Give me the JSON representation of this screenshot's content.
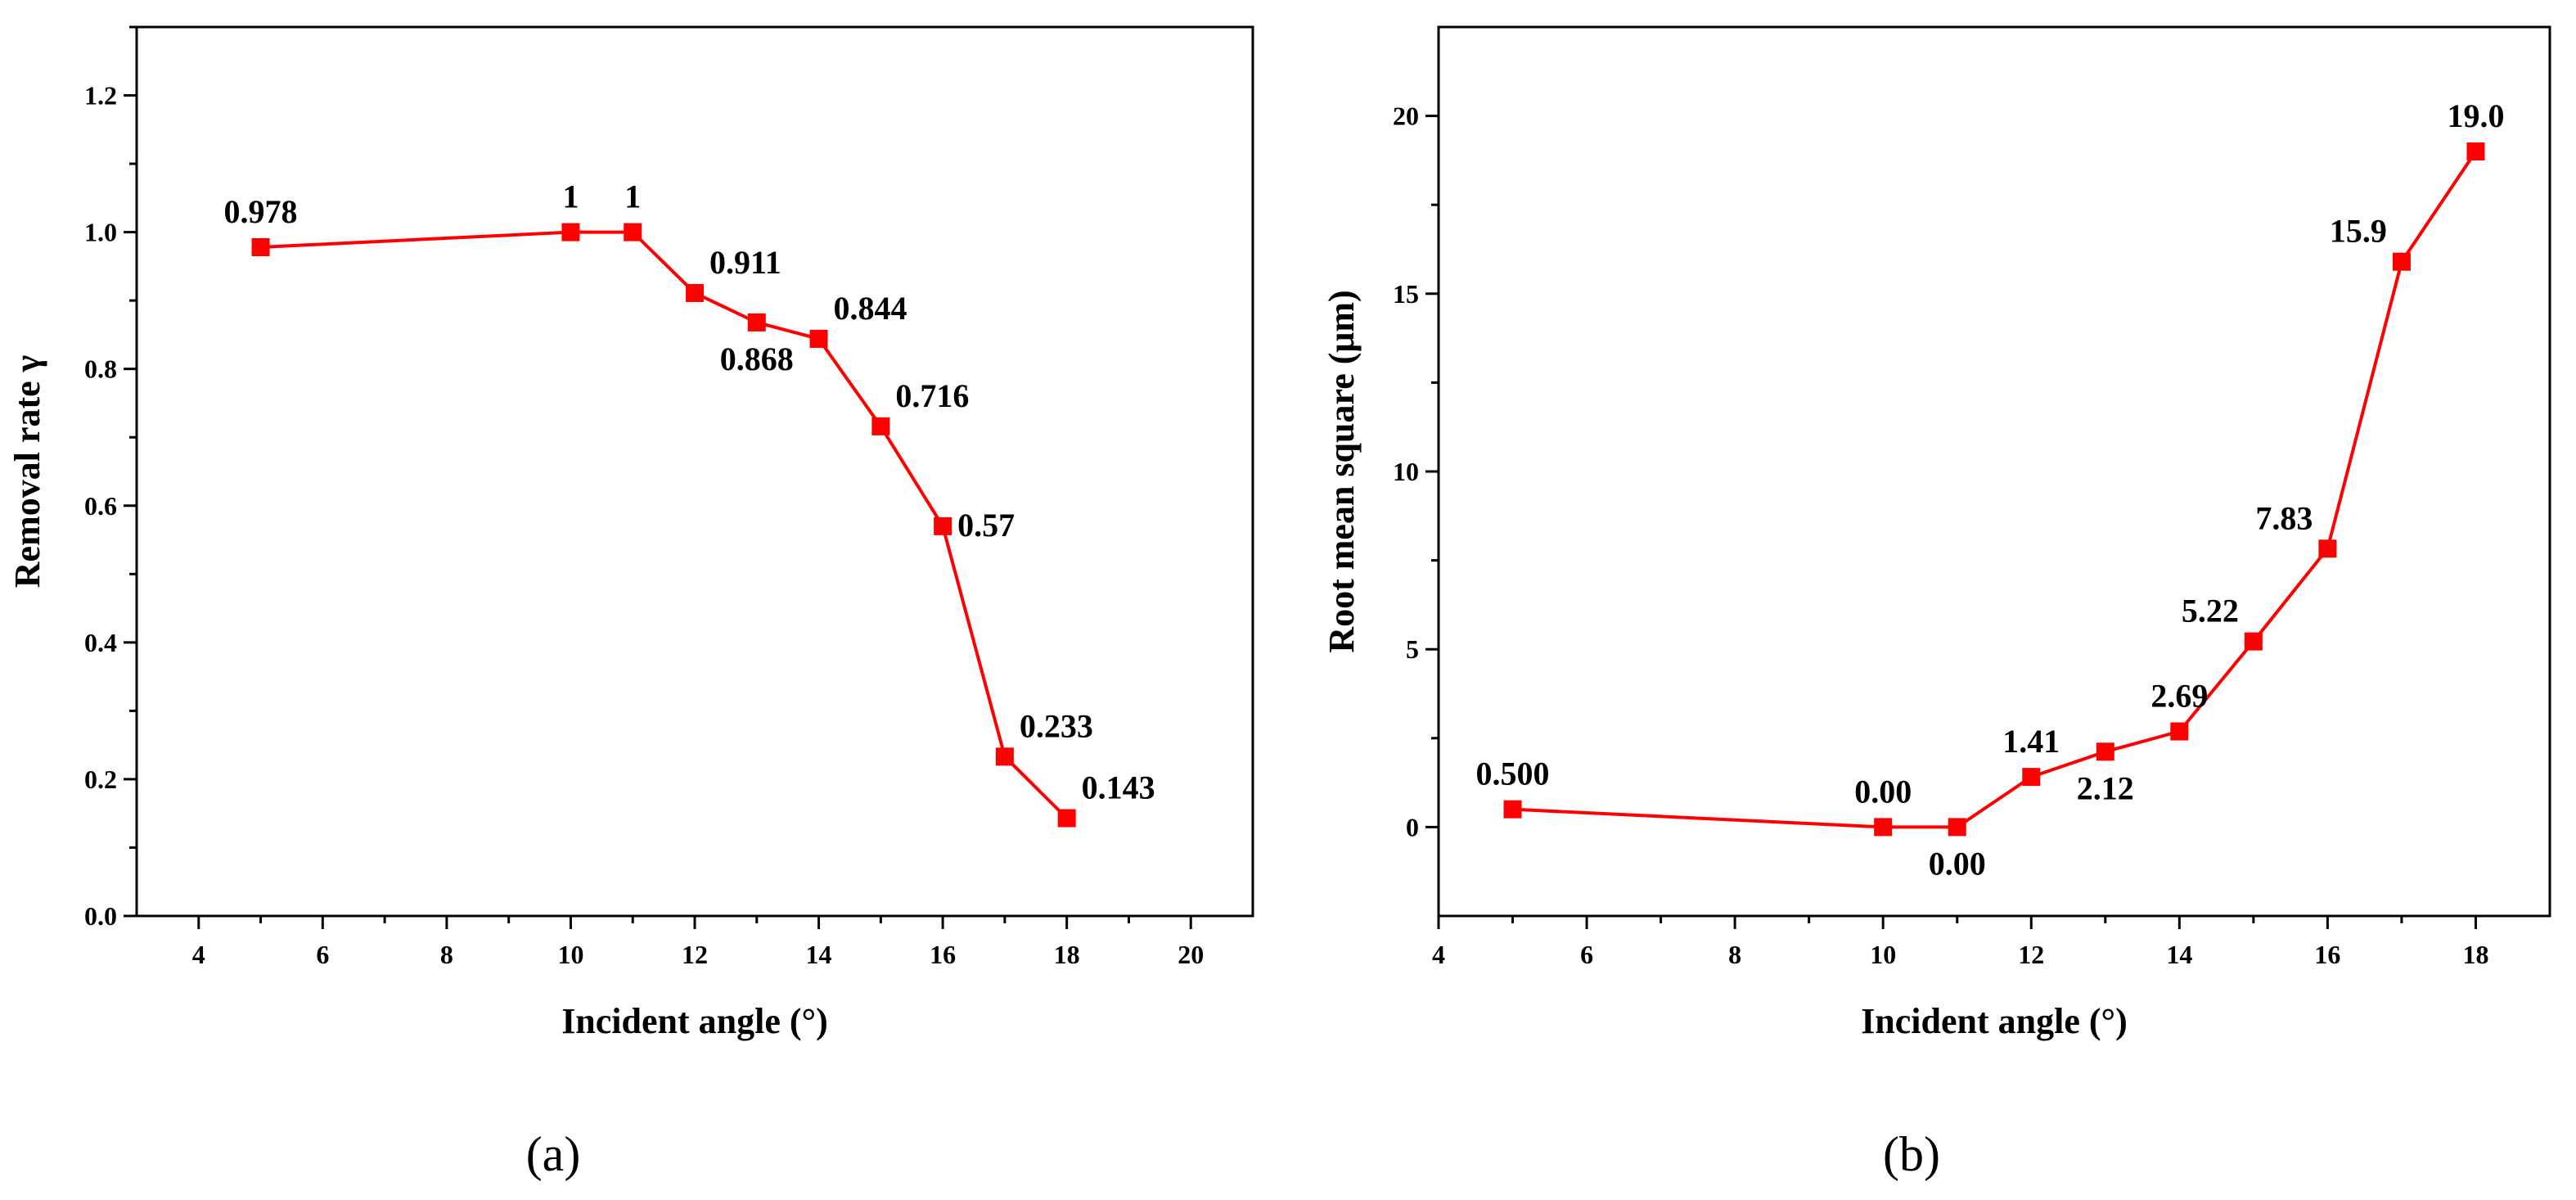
{
  "chart_data": [
    {
      "type": "line",
      "panel_label": "(a)",
      "xlabel": "Incident angle (°)",
      "ylabel": "Removal rate γ",
      "xlim": [
        3,
        21
      ],
      "ylim": [
        0,
        1.3
      ],
      "xticks": [
        4,
        6,
        8,
        10,
        12,
        14,
        16,
        18,
        20
      ],
      "xtick_labels": [
        "4",
        "6",
        "8",
        "10",
        "12",
        "14",
        "16",
        "18",
        "20"
      ],
      "yticks": [
        0.0,
        0.2,
        0.4,
        0.6,
        0.8,
        1.0,
        1.2
      ],
      "ytick_labels": [
        "0.0",
        "0.2",
        "0.4",
        "0.6",
        "0.8",
        "1.0",
        "1.2"
      ],
      "color": "#ff0000",
      "marker": "square",
      "series": [
        {
          "name": "Removal rate",
          "x": [
            5,
            10,
            11,
            12,
            13,
            14,
            15,
            16,
            17,
            18
          ],
          "y": [
            0.978,
            1,
            1,
            0.911,
            0.868,
            0.844,
            0.716,
            0.57,
            0.233,
            0.143
          ],
          "labels": [
            "0.978",
            "1",
            "1",
            "0.911",
            "0.868",
            "0.844",
            "0.716",
            "0.57",
            "0.233",
            "0.143"
          ],
          "label_positions": [
            "above",
            "above",
            "above",
            "above-right",
            "below",
            "above-right",
            "above-right",
            "right",
            "above-right",
            "above-right"
          ]
        }
      ]
    },
    {
      "type": "line",
      "panel_label": "(b)",
      "xlabel": "Incident angle (°)",
      "ylabel": "Root mean square (μm)",
      "xlim": [
        4,
        19
      ],
      "ylim": [
        -2.5,
        22.5
      ],
      "xticks": [
        4,
        6,
        8,
        10,
        12,
        14,
        16,
        18
      ],
      "xtick_labels": [
        "4",
        "6",
        "8",
        "10",
        "12",
        "14",
        "16",
        "18"
      ],
      "yticks": [
        0,
        5,
        10,
        15,
        20
      ],
      "ytick_labels": [
        "0",
        "5",
        "10",
        "15",
        "20"
      ],
      "color": "#ff0000",
      "marker": "square",
      "series": [
        {
          "name": "Root mean square",
          "x": [
            5,
            10,
            11,
            12,
            13,
            14,
            15,
            16,
            17,
            18
          ],
          "y": [
            0.5,
            0.0,
            0.0,
            1.41,
            2.12,
            2.69,
            5.22,
            7.83,
            15.9,
            19.0
          ],
          "labels": [
            "0.500",
            "0.00",
            "0.00",
            "1.41",
            "2.12",
            "2.69",
            "5.22",
            "7.83",
            "15.9",
            "19.0"
          ],
          "label_positions": [
            "above",
            "above",
            "below",
            "above",
            "below",
            "above",
            "above-left",
            "above-left",
            "above-left",
            "above"
          ]
        }
      ]
    }
  ]
}
